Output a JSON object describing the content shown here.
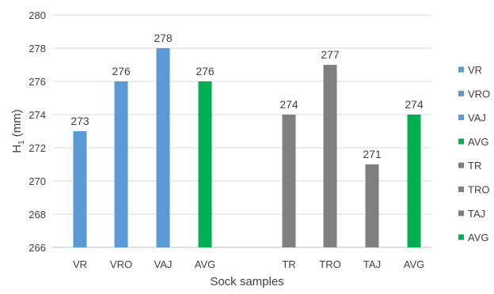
{
  "chart_data": {
    "type": "bar",
    "xlabel": "Sock samples",
    "ylabel_main": "H",
    "ylabel_sub": "1",
    "ylabel_unit": " (mm)",
    "ylim": [
      266,
      280
    ],
    "yticks": [
      266,
      268,
      270,
      272,
      274,
      276,
      278,
      280
    ],
    "grid": true,
    "legend_position": "right",
    "colors": {
      "blue": "#5b9bd5",
      "gray": "#7f7f7f",
      "green": "#00b050",
      "grid": "#d9d9d9",
      "text": "#404040"
    },
    "bars": [
      {
        "category": "VR",
        "value": 273,
        "color": "#5b9bd5"
      },
      {
        "category": "VRO",
        "value": 276,
        "color": "#5b9bd5"
      },
      {
        "category": "VAJ",
        "value": 278,
        "color": "#5b9bd5"
      },
      {
        "category": "AVG",
        "value": 276,
        "color": "#00b050"
      },
      {
        "category": "TR",
        "value": 274,
        "color": "#7f7f7f"
      },
      {
        "category": "TRO",
        "value": 277,
        "color": "#7f7f7f"
      },
      {
        "category": "TAJ",
        "value": 271,
        "color": "#7f7f7f"
      },
      {
        "category": "AVG",
        "value": 274,
        "color": "#00b050"
      }
    ],
    "legend": [
      {
        "label": "VR",
        "color": "#5b9bd5"
      },
      {
        "label": "VRO",
        "color": "#5b9bd5"
      },
      {
        "label": "VAJ",
        "color": "#5b9bd5"
      },
      {
        "label": "AVG",
        "color": "#00b050"
      },
      {
        "label": "TR",
        "color": "#7f7f7f"
      },
      {
        "label": "TRO",
        "color": "#7f7f7f"
      },
      {
        "label": "TAJ",
        "color": "#7f7f7f"
      },
      {
        "label": "AVG",
        "color": "#00b050"
      }
    ]
  }
}
